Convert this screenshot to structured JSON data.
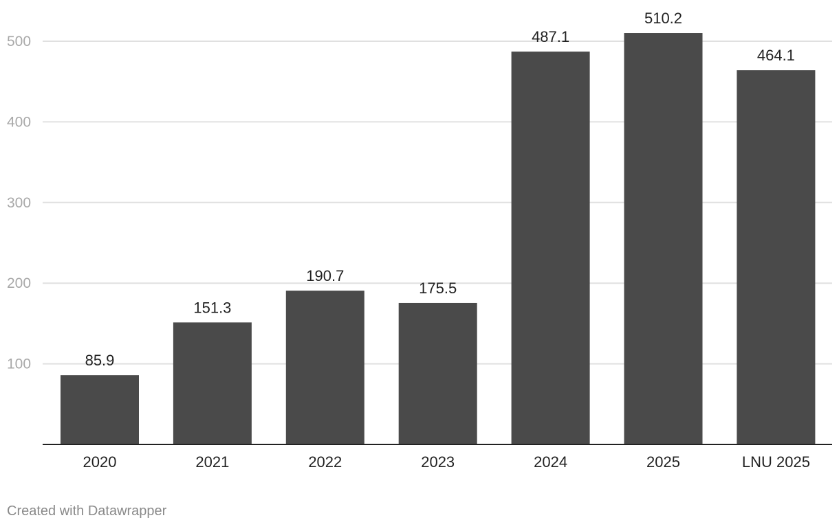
{
  "chart_data": {
    "type": "bar",
    "title": "",
    "xlabel": "",
    "ylabel": "",
    "categories": [
      "2020",
      "2021",
      "2022",
      "2023",
      "2024",
      "2025",
      "LNU 2025"
    ],
    "values": [
      85.9,
      151.3,
      190.7,
      175.5,
      487.1,
      510.2,
      464.1
    ],
    "value_labels": [
      "85.9",
      "151.3",
      "190.7",
      "175.5",
      "487.1",
      "510.2",
      "464.1"
    ],
    "y_ticks": [
      100,
      200,
      300,
      400,
      500
    ],
    "y_tick_labels": [
      "100",
      "200",
      "300",
      "400",
      "500"
    ],
    "ylim": [
      0,
      550
    ],
    "grid": true,
    "legend": "none",
    "bar_color": "#4a4a4a",
    "grid_color": "#e0e0e0",
    "tick_label_color": "#a8a8a8",
    "label_color": "#222222",
    "axis_color": "#222222"
  },
  "footer": {
    "credit": "Created with Datawrapper"
  }
}
